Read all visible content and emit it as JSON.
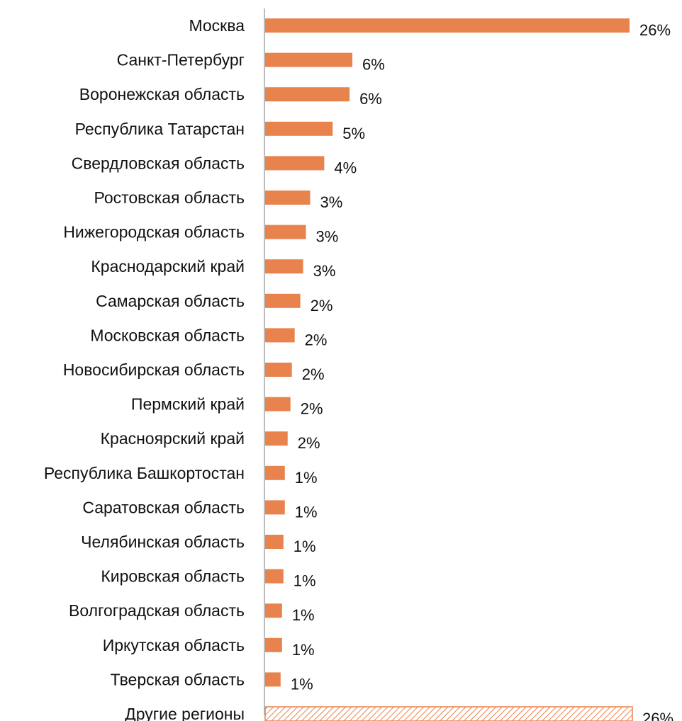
{
  "chart_data": {
    "type": "bar",
    "orientation": "horizontal",
    "categories": [
      "Москва",
      "Санкт-Петербург",
      "Воронежская область",
      "Республика Татарстан",
      "Свердловская область",
      "Ростовская область",
      "Нижегородская область",
      "Краснодарский край",
      "Самарская область",
      "Московская область",
      "Новосибирская область",
      "Пермский край",
      "Красноярский край",
      "Республика Башкортостан",
      "Саратовская область",
      "Челябинская область",
      "Кировская область",
      "Волгоградская область",
      "Иркутская область",
      "Тверская область",
      "Другие регионы"
    ],
    "values": [
      26,
      6,
      6,
      5,
      4,
      3,
      3,
      3,
      2,
      2,
      2,
      2,
      2,
      1,
      1,
      1,
      1,
      1,
      1,
      1,
      26
    ],
    "value_labels": [
      "26%",
      "6%",
      "6%",
      "5%",
      "4%",
      "3%",
      "3%",
      "3%",
      "2%",
      "2%",
      "2%",
      "2%",
      "2%",
      "1%",
      "1%",
      "1%",
      "1%",
      "1%",
      "1%",
      "1%",
      "26%"
    ],
    "bar_widths_precise": [
      25.9,
      6.2,
      6.0,
      4.8,
      4.2,
      3.2,
      2.9,
      2.7,
      2.5,
      2.1,
      1.9,
      1.8,
      1.6,
      1.4,
      1.4,
      1.3,
      1.3,
      1.2,
      1.2,
      1.1,
      26.1
    ],
    "title": "",
    "xlabel": "",
    "ylabel": "",
    "xlim": [
      0,
      27
    ],
    "grid": false,
    "legend": "none",
    "colors": {
      "bar": "#E8834E",
      "bar_edge": "#D9733F",
      "hatched_bar_stroke": "#E8834E",
      "axis": "#A6A6A6",
      "text": "#111111"
    },
    "hatched_categories": [
      "Другие регионы"
    ]
  }
}
